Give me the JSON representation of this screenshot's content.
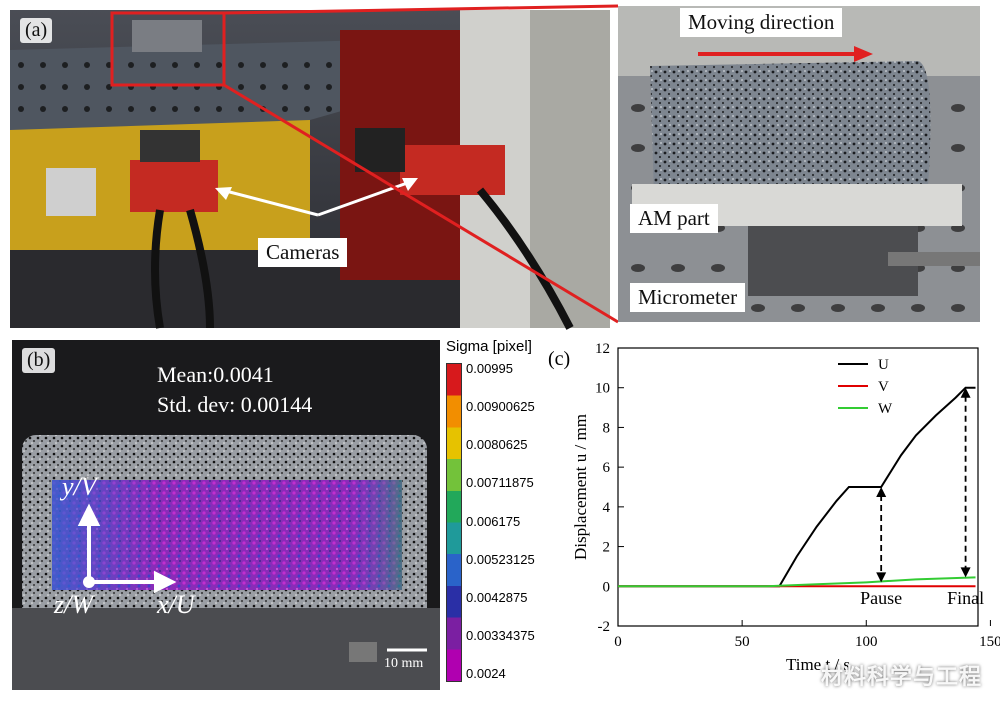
{
  "panel_a": {
    "label": "(a)",
    "cameras_label": "Cameras",
    "moving_direction_label": "Moving direction",
    "am_part_label": "AM part",
    "micrometer_label": "Micrometer"
  },
  "panel_b": {
    "label": "(b)",
    "mean_text": "Mean:0.0041",
    "std_text": "Std. dev: 0.00144",
    "axis_y": "y/V",
    "axis_x": "x/U",
    "axis_z": "z/W",
    "scale_bar": "10 mm",
    "colorbar_title": "Sigma [pixel]",
    "colorbar_ticks": [
      "0.00995",
      "0.00900625",
      "0.0080625",
      "0.00711875",
      "0.006175",
      "0.00523125",
      "0.0042875",
      "0.00334375",
      "0.0024"
    ],
    "colorbar_colors": [
      "#d7191c",
      "#f28e00",
      "#e6c200",
      "#73c23a",
      "#22a85a",
      "#1f9a9a",
      "#2a63c9",
      "#2a2fa6",
      "#7b1fa2",
      "#b000b0"
    ]
  },
  "panel_c": {
    "label": "(c)",
    "annotation_pause": "Pause",
    "annotation_final": "Final"
  },
  "chart_data": {
    "type": "line",
    "xlabel": "Time t / s",
    "ylabel": "Displacement u / mm",
    "xlim": [
      0,
      145
    ],
    "ylim": [
      -2,
      12
    ],
    "xticks": [
      "0",
      "50",
      "100",
      "150"
    ],
    "yticks": [
      "-2",
      "0",
      "2",
      "4",
      "6",
      "8",
      "10",
      "12"
    ],
    "series": [
      {
        "name": "U",
        "color": "#000000",
        "x": [
          0,
          60,
          65,
          72,
          80,
          88,
          93,
          100,
          106,
          108,
          114,
          120,
          128,
          136,
          140,
          144
        ],
        "y": [
          0,
          0,
          0,
          1.5,
          3.0,
          4.3,
          5.0,
          5.0,
          5.0,
          5.4,
          6.6,
          7.6,
          8.6,
          9.5,
          10.0,
          10.0
        ]
      },
      {
        "name": "V",
        "color": "#e00000",
        "x": [
          0,
          60,
          100,
          144
        ],
        "y": [
          0,
          0,
          0,
          0
        ]
      },
      {
        "name": "W",
        "color": "#33cc33",
        "x": [
          0,
          60,
          80,
          100,
          120,
          144
        ],
        "y": [
          0,
          0,
          0.1,
          0.2,
          0.35,
          0.45
        ]
      }
    ],
    "legend": "top-right",
    "grid": false
  },
  "watermark": "材料科学与工程"
}
